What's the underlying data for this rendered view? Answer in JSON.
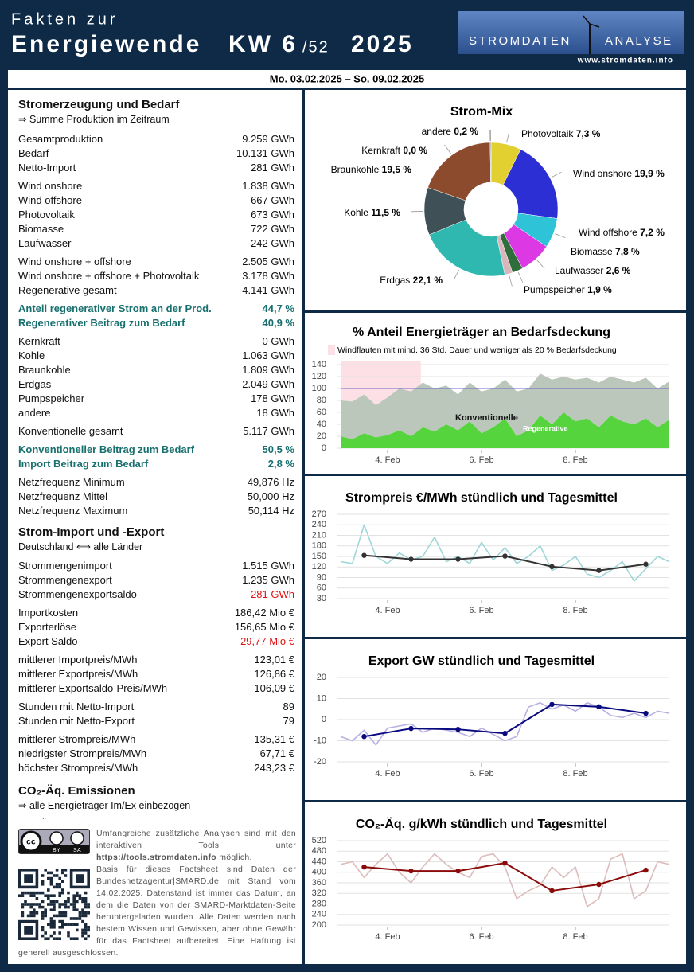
{
  "header": {
    "line1": "Fakten zur",
    "line2": "Energiewende",
    "week": "KW 6",
    "week_total": "/52",
    "year": "2025",
    "logo_left": "STROMDATEN",
    "logo_right": "ANALYSE",
    "url": "www.stromdaten.info"
  },
  "date_range": "Mo. 03.02.2025 – So. 09.02.2025",
  "summary": {
    "sections": [
      {
        "title": "Stromerzeugung und Bedarf",
        "subtitle": "⇒ Summe Produktion im Zeitraum",
        "groups": [
          [
            {
              "label": "Gesamtproduktion",
              "value": "9.259 GWh"
            },
            {
              "label": "Bedarf",
              "value": "10.131 GWh"
            },
            {
              "label": "Netto-Import",
              "value": "281 GWh"
            }
          ],
          [
            {
              "label": "Wind onshore",
              "value": "1.838 GWh"
            },
            {
              "label": "Wind offshore",
              "value": "667 GWh"
            },
            {
              "label": "Photovoltaik",
              "value": "673 GWh"
            },
            {
              "label": "Biomasse",
              "value": "722 GWh"
            },
            {
              "label": "Laufwasser",
              "value": "242 GWh"
            }
          ],
          [
            {
              "label": "Wind onshore + offshore",
              "value": "2.505 GWh"
            },
            {
              "label": "Wind onshore + offshore + Photovoltaik",
              "value": "3.178 GWh"
            },
            {
              "label": "Regenerative gesamt",
              "value": "4.141 GWh"
            }
          ],
          [
            {
              "label": "Anteil regenerativer Strom an der Prod.",
              "value": "44,7 %",
              "style": "highlight"
            },
            {
              "label": "Regenerativer Beitrag zum Bedarf",
              "value": "40,9 %",
              "style": "highlight"
            }
          ],
          [
            {
              "label": "Kernkraft",
              "value": "0 GWh"
            },
            {
              "label": "Kohle",
              "value": "1.063 GWh"
            },
            {
              "label": "Braunkohle",
              "value": "1.809 GWh"
            },
            {
              "label": "Erdgas",
              "value": "2.049 GWh"
            },
            {
              "label": "Pumpspeicher",
              "value": "178 GWh"
            },
            {
              "label": "andere",
              "value": "18 GWh"
            }
          ],
          [
            {
              "label": "Konventionelle gesamt",
              "value": "5.117 GWh"
            }
          ],
          [
            {
              "label": "Konventioneller Beitrag zum Bedarf",
              "value": "50,5 %",
              "style": "highlight"
            },
            {
              "label": "Import Beitrag zum Bedarf",
              "value": "2,8 %",
              "style": "highlight"
            }
          ],
          [
            {
              "label": "Netzfrequenz Minimum",
              "value": "49,876 Hz"
            },
            {
              "label": "Netzfrequenz Mittel",
              "value": "50,000 Hz"
            },
            {
              "label": "Netzfrequenz Maximum",
              "value": "50,114 Hz"
            }
          ]
        ]
      },
      {
        "title": "Strom-Import und -Export",
        "subtitle": "Deutschland ⟺ alle Länder",
        "groups": [
          [
            {
              "label": "Strommengenimport",
              "value": "1.515 GWh"
            },
            {
              "label": "Strommengenexport",
              "value": "1.235 GWh"
            },
            {
              "label": "Strommengenexportsaldo",
              "value": "-281 GWh",
              "style": "negative"
            }
          ],
          [
            {
              "label": "Importkosten",
              "value": "186,42 Mio €"
            },
            {
              "label": "Exporterlöse",
              "value": "156,65 Mio €"
            },
            {
              "label": "Export Saldo",
              "value": "-29,77 Mio €",
              "style": "negative"
            }
          ],
          [
            {
              "label": "mittlerer Importpreis/MWh",
              "value": "123,01 €"
            },
            {
              "label": "mittlerer Exportpreis/MWh",
              "value": "126,86 €"
            },
            {
              "label": "mittlerer Exportsaldo-Preis/MWh",
              "value": "106,09 €"
            }
          ],
          [
            {
              "label": "Stunden mit Netto-Import",
              "value": "89"
            },
            {
              "label": "Stunden mit Netto-Export",
              "value": "79"
            }
          ],
          [
            {
              "label": "mittlerer Strompreis/MWh",
              "value": "135,31 €"
            },
            {
              "label": "niedrigster Strompreis/MWh",
              "value": "67,71 €"
            },
            {
              "label": "höchster Strompreis/MWh",
              "value": "243,23 €"
            }
          ]
        ]
      },
      {
        "title": "CO₂-Äq. Emissionen",
        "subtitle": "⇒ alle Energieträger Im/Ex einbezogen",
        "note": "..",
        "groups": []
      }
    ]
  },
  "footer": {
    "cc_badge": [
      "BY",
      "SA"
    ],
    "tools_text": "Umfangreiche zusätzliche Analysen sind mit den interaktiven Tools unter",
    "tools_url": "https://tools.stromdaten.info",
    "tools_end": "möglich.",
    "basis_text": "Basis für dieses Factsheet sind Daten der Bundesnetzagentur|SMARD.de mit Stand vom 14.02.2025. Datenstand ist immer das Datum, an dem die Daten von der SMARD-Marktdaten-Seite heruntergeladen wurden. Alle Daten werden nach bestem Wissen und Gewissen, aber ohne Gewähr für das Factsheet aufbereitet. Eine Haftung ist generell ausgeschlossen."
  },
  "chart_data": [
    {
      "type": "pie",
      "title": "Strom-Mix",
      "categories": [
        "Photovoltaik",
        "Wind onshore",
        "Wind offshore",
        "Biomasse",
        "Laufwasser",
        "Pumpspeicher",
        "Erdgas",
        "Kohle",
        "Braunkohle",
        "Kernkraft",
        "andere"
      ],
      "values": [
        7.3,
        19.9,
        7.2,
        7.8,
        2.6,
        1.9,
        22.1,
        11.5,
        19.5,
        0.0,
        0.2
      ],
      "value_labels": [
        "7,3 %",
        "19,9 %",
        "7,2 %",
        "7,8 %",
        "2,6 %",
        "1,9 %",
        "22,1 %",
        "11,5 %",
        "19,5 %",
        "0,0 %",
        "0,2 %"
      ],
      "colors": [
        "#e2d030",
        "#2c2fd4",
        "#2fc3d8",
        "#dc38e4",
        "#2f6e3a",
        "#d8b6bb",
        "#2eb8b0",
        "#3f5156",
        "#8c4b2c",
        "#c84040",
        "#8a8a8a"
      ]
    },
    {
      "type": "area",
      "title": "% Anteil Energieträger an Bedarfsdeckung",
      "shaded_label": "Windflauten mit mind. 36 Std. Dauer und weniger als 20 % Bedarfsdeckung",
      "shaded_range": [
        0,
        41
      ],
      "shaded_color": "#fde0e5",
      "ref_line": 100,
      "grid": true,
      "xlim": [
        0,
        168
      ],
      "xticks": [
        {
          "value": 24,
          "label": "4. Feb"
        },
        {
          "value": 72,
          "label": "6. Feb"
        },
        {
          "value": 120,
          "label": "8. Feb"
        }
      ],
      "ylim": [
        0,
        140
      ],
      "yticks": [
        0,
        20,
        40,
        60,
        80,
        100,
        120,
        140
      ],
      "series": [
        {
          "name": "Regenerative",
          "color": "#55d43d",
          "x": [
            0,
            6,
            12,
            18,
            24,
            30,
            36,
            42,
            48,
            54,
            60,
            66,
            72,
            78,
            84,
            90,
            96,
            102,
            108,
            114,
            120,
            126,
            132,
            138,
            144,
            150,
            156,
            162,
            168
          ],
          "values": [
            20,
            15,
            25,
            18,
            22,
            30,
            20,
            35,
            28,
            40,
            30,
            45,
            25,
            35,
            50,
            20,
            30,
            55,
            40,
            60,
            45,
            50,
            35,
            55,
            45,
            40,
            50,
            35,
            48
          ]
        },
        {
          "name": "Konventionelle",
          "color": "#bac7ba",
          "x": [
            0,
            6,
            12,
            18,
            24,
            30,
            36,
            42,
            48,
            54,
            60,
            66,
            72,
            78,
            84,
            90,
            96,
            102,
            108,
            114,
            120,
            126,
            132,
            138,
            144,
            150,
            156,
            162,
            168
          ],
          "values": [
            60,
            63,
            65,
            54,
            63,
            70,
            75,
            75,
            72,
            65,
            60,
            65,
            70,
            65,
            65,
            75,
            70,
            70,
            75,
            60,
            70,
            68,
            75,
            65,
            70,
            70,
            68,
            65,
            64
          ]
        }
      ]
    },
    {
      "type": "line",
      "title": "Strompreis €/MWh stündlich und Tagesmittel",
      "grid": true,
      "xlim": [
        0,
        168
      ],
      "xticks": [
        {
          "value": 24,
          "label": "4. Feb"
        },
        {
          "value": 72,
          "label": "6. Feb"
        },
        {
          "value": 120,
          "label": "8. Feb"
        }
      ],
      "ylim": [
        30,
        270
      ],
      "yticks": [
        30,
        60,
        90,
        120,
        150,
        180,
        210,
        240,
        270
      ],
      "series": [
        {
          "color": "#9fd6d8",
          "x": [
            0,
            6,
            12,
            18,
            24,
            30,
            36,
            42,
            48,
            54,
            60,
            66,
            72,
            78,
            84,
            90,
            96,
            102,
            108,
            114,
            120,
            126,
            132,
            138,
            144,
            150,
            156,
            162,
            168
          ],
          "values": [
            135,
            130,
            240,
            150,
            130,
            160,
            140,
            150,
            205,
            135,
            150,
            130,
            190,
            140,
            175,
            130,
            150,
            180,
            110,
            125,
            150,
            100,
            90,
            110,
            135,
            80,
            115,
            150,
            135
          ]
        },
        {
          "color": "#333333",
          "markers": true,
          "x": [
            12,
            36,
            60,
            84,
            108,
            132,
            156
          ],
          "values": [
            153,
            142,
            142,
            151,
            121,
            110,
            128
          ]
        }
      ]
    },
    {
      "type": "line",
      "title": "Export GW stündlich und Tagesmittel",
      "grid": true,
      "xlim": [
        0,
        168
      ],
      "xticks": [
        {
          "value": 24,
          "label": "4. Feb"
        },
        {
          "value": 72,
          "label": "6. Feb"
        },
        {
          "value": 120,
          "label": "8. Feb"
        }
      ],
      "ylim": [
        -20,
        20
      ],
      "yticks": [
        -20,
        -10,
        0,
        10,
        20
      ],
      "series": [
        {
          "color": "#b9b1e2",
          "x": [
            0,
            6,
            12,
            18,
            24,
            30,
            36,
            42,
            48,
            54,
            60,
            66,
            72,
            78,
            84,
            90,
            96,
            102,
            108,
            114,
            120,
            126,
            132,
            138,
            144,
            150,
            156,
            162,
            168
          ],
          "values": [
            -8,
            -10,
            -5,
            -12,
            -4,
            -3,
            -2,
            -6,
            -4,
            -5,
            -6,
            -8,
            -4,
            -7,
            -10,
            -8,
            6,
            8,
            5,
            7,
            4,
            8,
            6,
            2,
            1,
            3,
            1,
            4,
            3
          ]
        },
        {
          "color": "#0a0a80",
          "markers": true,
          "x": [
            12,
            36,
            60,
            84,
            108,
            132,
            156
          ],
          "values": [
            -8,
            -4.2,
            -4.6,
            -6.5,
            7.2,
            6.1,
            3.0
          ]
        }
      ]
    },
    {
      "type": "line",
      "title": "CO₂-Äq. g/kWh stündlich und Tagesmittel",
      "grid": true,
      "xlim": [
        0,
        168
      ],
      "xticks": [
        {
          "value": 24,
          "label": "4. Feb"
        },
        {
          "value": 72,
          "label": "6. Feb"
        },
        {
          "value": 120,
          "label": "8. Feb"
        }
      ],
      "ylim": [
        200,
        520
      ],
      "yticks": [
        200,
        240,
        280,
        320,
        360,
        400,
        440,
        480,
        520
      ],
      "series": [
        {
          "color": "#dcbcbc",
          "x": [
            0,
            6,
            12,
            18,
            24,
            30,
            36,
            42,
            48,
            54,
            60,
            66,
            72,
            78,
            84,
            90,
            96,
            102,
            108,
            114,
            120,
            126,
            132,
            138,
            144,
            150,
            156,
            162,
            168
          ],
          "values": [
            430,
            440,
            380,
            430,
            470,
            400,
            360,
            420,
            470,
            430,
            400,
            380,
            460,
            470,
            420,
            300,
            330,
            350,
            420,
            380,
            420,
            270,
            300,
            450,
            470,
            300,
            330,
            440,
            430
          ]
        },
        {
          "color": "#8b0a0a",
          "markers": true,
          "x": [
            12,
            36,
            60,
            84,
            108,
            132,
            156
          ],
          "values": [
            420,
            405,
            405,
            435,
            330,
            354,
            408
          ]
        }
      ]
    }
  ]
}
